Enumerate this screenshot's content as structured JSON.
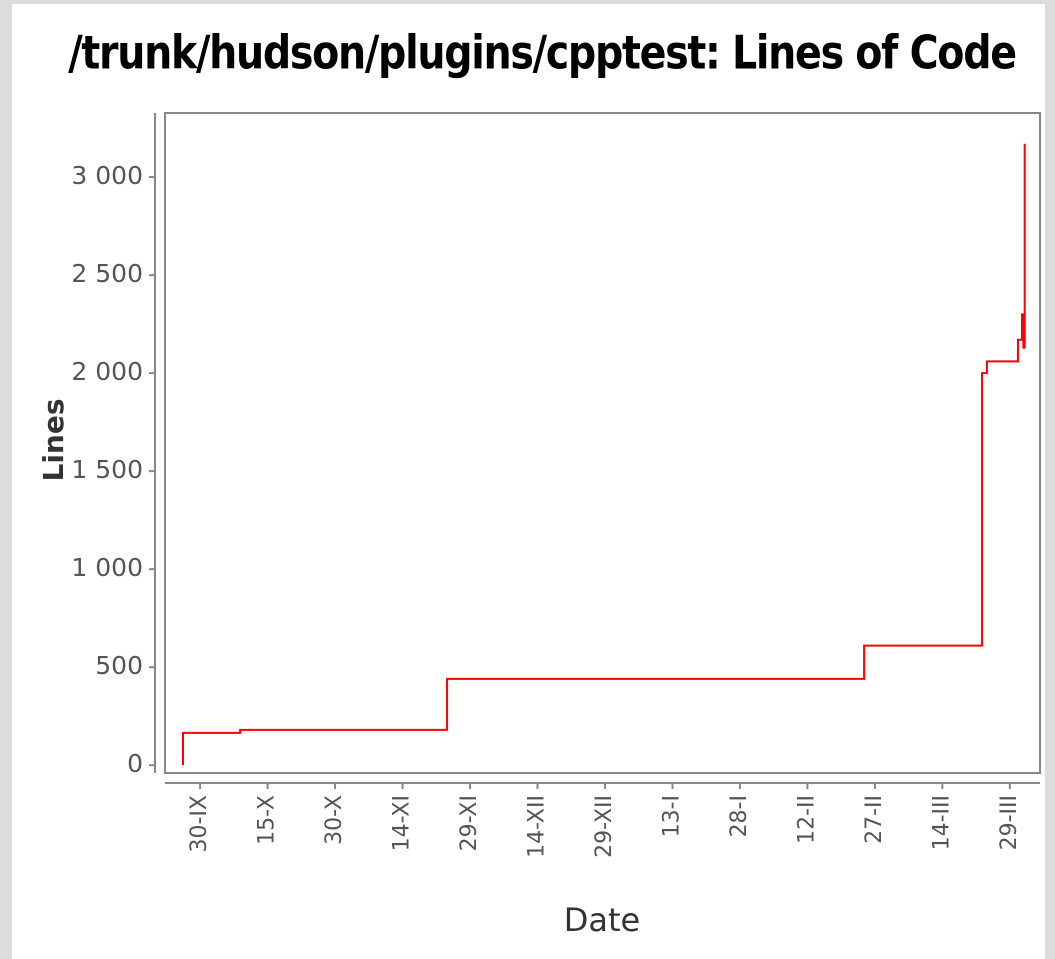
{
  "chart_data": {
    "type": "line",
    "step": "post",
    "title": "/trunk/hudson/plugins/cpptest: Lines of Code",
    "x_label": "Date",
    "y_label": "Lines",
    "x": [
      -3.8,
      -3.8,
      8.9,
      54.9,
      147.6,
      173.8,
      174.9,
      181.8,
      182.7,
      183.0,
      183.3
    ],
    "series": [
      {
        "color": "#ff0000",
        "values": [
          0,
          165,
          180,
          440,
          610,
          2000,
          2060,
          2170,
          2300,
          2130,
          3170
        ]
      }
    ],
    "xlim": [
      -7.8,
      186.7
    ],
    "xticks": [
      {
        "value": 0,
        "label": "30-IX"
      },
      {
        "value": 15,
        "label": "15-X"
      },
      {
        "value": 30,
        "label": "30-X"
      },
      {
        "value": 45,
        "label": "14-XI"
      },
      {
        "value": 60,
        "label": "29-XI"
      },
      {
        "value": 75,
        "label": "14-XII"
      },
      {
        "value": 90,
        "label": "29-XII"
      },
      {
        "value": 105,
        "label": "13-I"
      },
      {
        "value": 120,
        "label": "28-I"
      },
      {
        "value": 135,
        "label": "12-II"
      },
      {
        "value": 150,
        "label": "27-II"
      },
      {
        "value": 165,
        "label": "14-III"
      },
      {
        "value": 180,
        "label": "29-III"
      }
    ],
    "ylim": [
      -40,
      3327
    ],
    "yticks": [
      0,
      500,
      {
        "value": 1000,
        "label": "1 000"
      },
      {
        "value": 1500,
        "label": "1 500"
      },
      {
        "value": 2000,
        "label": "2 000"
      },
      {
        "value": 2500,
        "label": "2 500"
      },
      {
        "value": 3000,
        "label": "3 000"
      }
    ],
    "grid": false
  }
}
